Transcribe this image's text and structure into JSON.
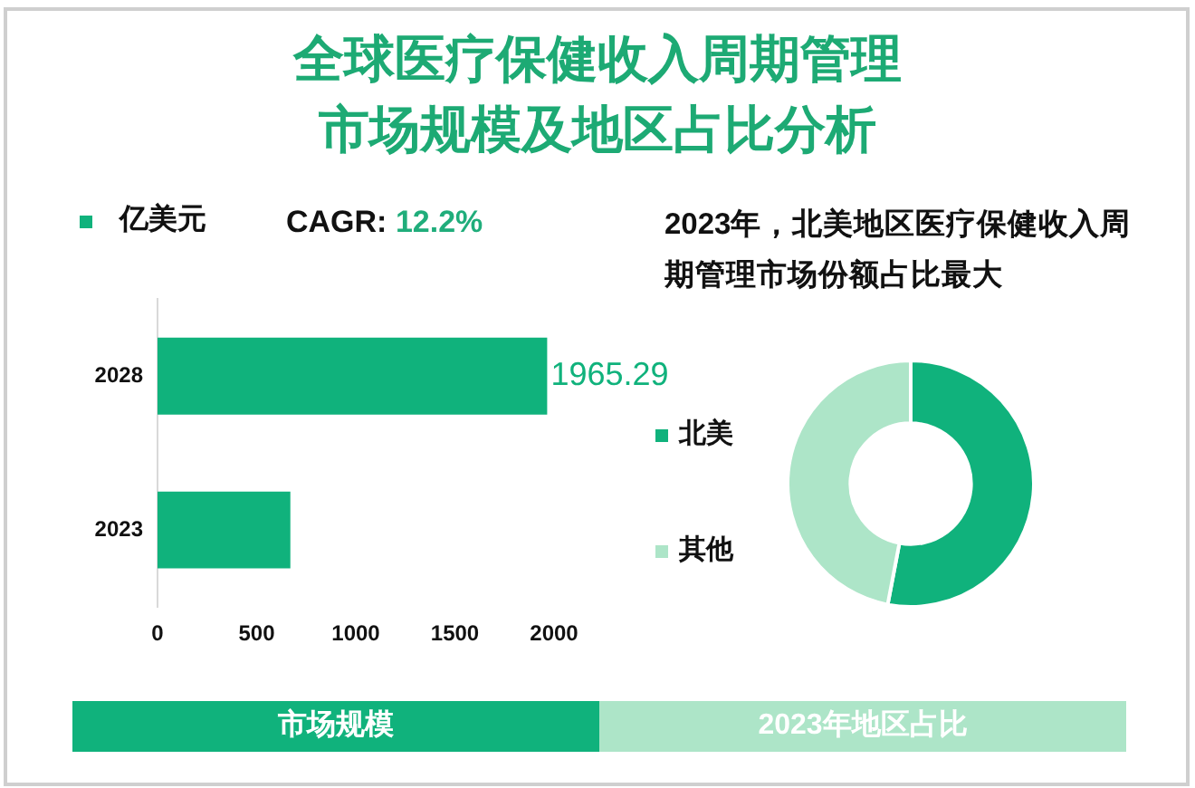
{
  "chart_data": [
    {
      "type": "bar",
      "title": "全球医疗保健收入周期管理市场规模及地区占比分析",
      "orientation": "horizontal",
      "categories": [
        "2028",
        "2023"
      ],
      "series": [
        {
          "name": "亿美元",
          "color": "#10b27c",
          "values": [
            1965.29,
            670
          ],
          "value_labels": [
            "1965.29",
            null
          ]
        }
      ],
      "xlim": [
        0,
        2000
      ],
      "xticks": [
        0,
        500,
        1000,
        1500,
        2000
      ],
      "grid": false,
      "legend": "top left",
      "annotations": [
        "CAGR: 12.2%",
        "市场规模"
      ]
    },
    {
      "type": "donut",
      "title": "2023年，北美地区医疗保健收入周期管理市场份额占比最大",
      "categories": [
        "北美",
        "其他"
      ],
      "values": [
        53,
        47
      ],
      "colors": [
        "#10b27c",
        "#ade5c8"
      ],
      "legend": "left",
      "annotations": [
        "2023年地区占比"
      ]
    }
  ]
}
